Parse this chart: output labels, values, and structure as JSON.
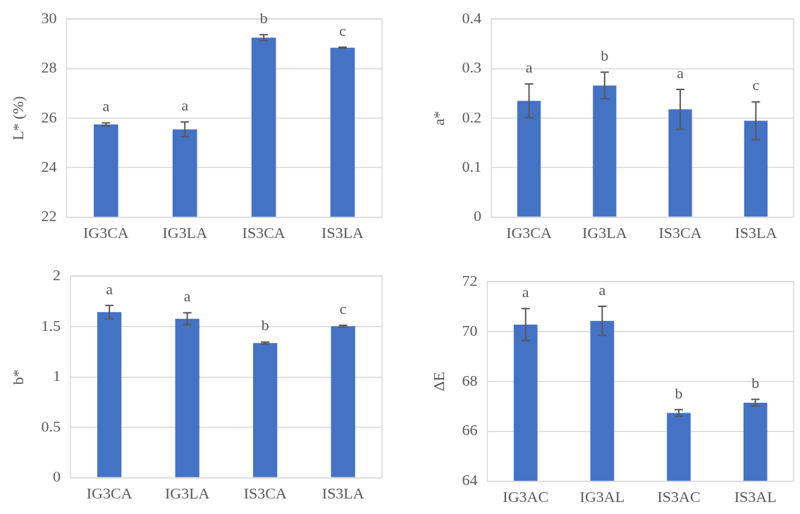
{
  "chart_data": [
    {
      "type": "bar",
      "ylabel": "L* (%)",
      "categories": [
        "IG3CA",
        "IG3LA",
        "IS3CA",
        "IS3LA"
      ],
      "values": [
        25.75,
        25.55,
        29.25,
        28.85
      ],
      "errors": [
        0.06,
        0.3,
        0.12,
        0.02
      ],
      "color": "#4472c4",
      "ylim": [
        22,
        30
      ],
      "yticks": [
        22,
        24,
        26,
        28,
        30
      ],
      "grid": "y",
      "annotations": [
        "a",
        "a",
        "b",
        "c"
      ]
    },
    {
      "type": "bar",
      "ylabel": "a*",
      "categories": [
        "IG3CA",
        "IG3LA",
        "IS3CA",
        "IS3LA"
      ],
      "values": [
        0.235,
        0.266,
        0.218,
        0.195
      ],
      "errors": [
        0.034,
        0.027,
        0.04,
        0.038
      ],
      "color": "#4472c4",
      "ylim": [
        0,
        0.4
      ],
      "yticks": [
        0,
        0.1,
        0.2,
        0.3,
        0.4
      ],
      "grid": "y",
      "annotations": [
        "a",
        "b",
        "a",
        "c"
      ]
    },
    {
      "type": "bar",
      "ylabel": "b*",
      "categories": [
        "IG3CA",
        "IG3LA",
        "IS3CA",
        "IS3LA"
      ],
      "values": [
        1.643,
        1.577,
        1.337,
        1.503
      ],
      "errors": [
        0.066,
        0.06,
        0.01,
        0.01
      ],
      "color": "#4472c4",
      "ylim": [
        0,
        2
      ],
      "yticks": [
        0,
        0.5,
        1,
        1.5,
        2
      ],
      "grid": "y",
      "annotations": [
        "a",
        "a",
        "b",
        "c"
      ]
    },
    {
      "type": "bar",
      "ylabel": "ΔE",
      "categories": [
        "IG3AC",
        "IG3AL",
        "IS3AC",
        "IS3AL"
      ],
      "values": [
        70.28,
        70.43,
        66.74,
        67.15
      ],
      "errors": [
        0.64,
        0.58,
        0.13,
        0.13
      ],
      "color": "#4472c4",
      "ylim": [
        64,
        72
      ],
      "yticks": [
        64,
        66,
        68,
        70,
        72
      ],
      "grid": "y",
      "annotations": [
        "a",
        "a",
        "b",
        "b"
      ]
    }
  ]
}
